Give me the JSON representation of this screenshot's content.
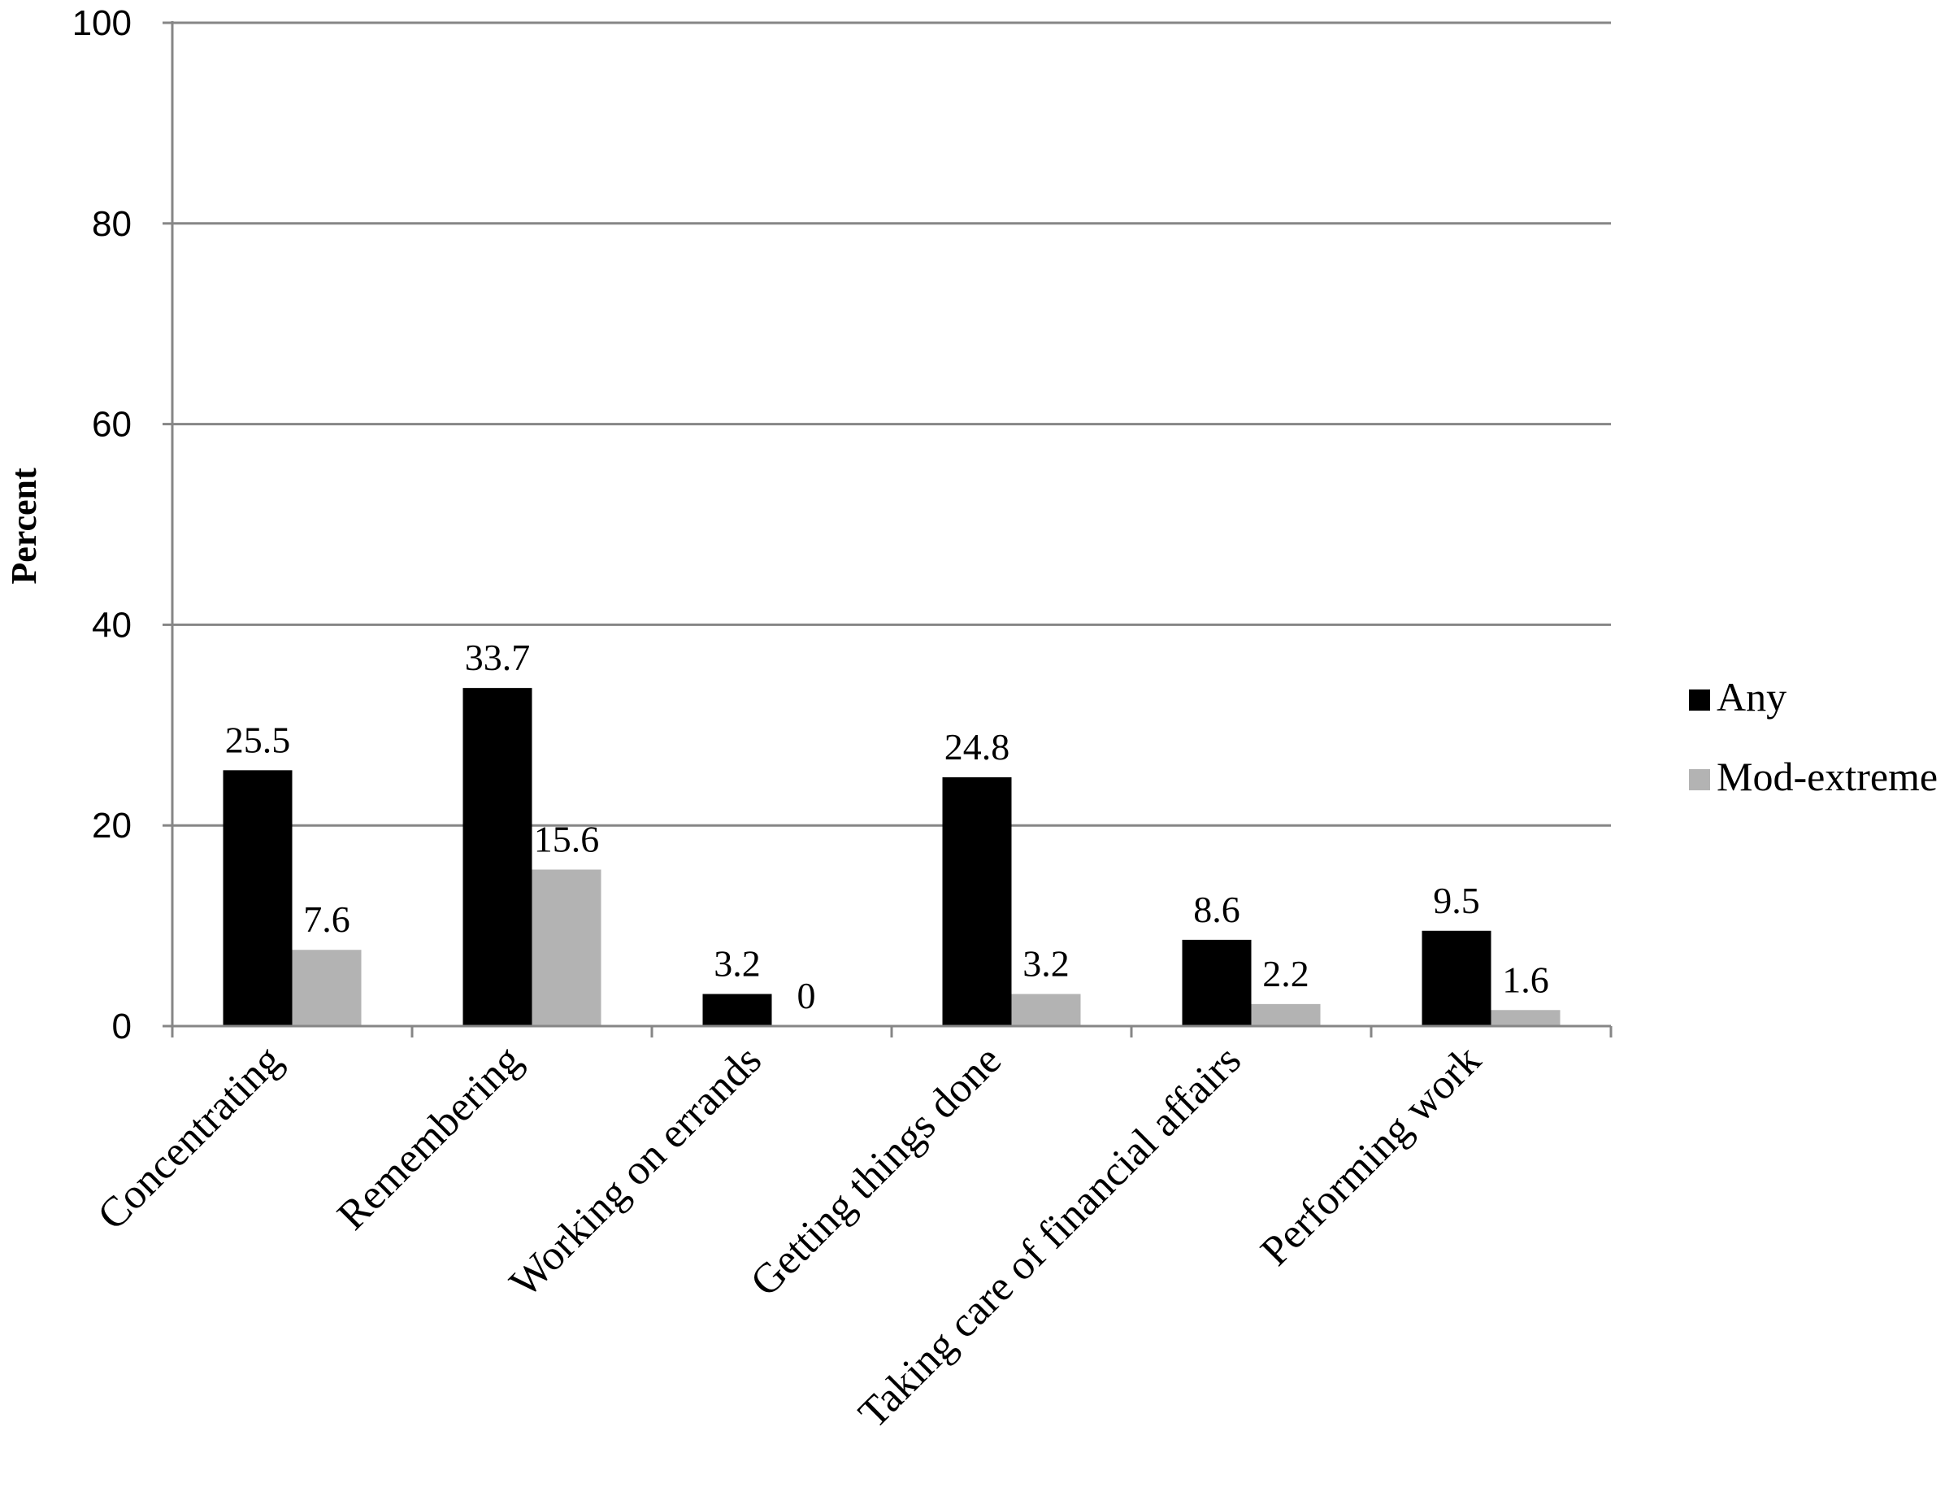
{
  "chart_data": {
    "type": "bar",
    "title": "",
    "xlabel": "",
    "ylabel": "Percent",
    "ylim": [
      0,
      100
    ],
    "yticks": [
      "0",
      "20",
      "40",
      "60",
      "80",
      "100"
    ],
    "grid": true,
    "legend_position": "right",
    "categories": [
      "Concentrating",
      "Remembering",
      "Working on errands",
      "Getting things done",
      "Taking care of financial affairs",
      "Performing work"
    ],
    "series": [
      {
        "name": "Any",
        "color": "#000000",
        "values": [
          25.5,
          33.7,
          3.2,
          24.8,
          8.6,
          9.5
        ],
        "labels": [
          "25.5",
          "33.7",
          "3.2",
          "24.8",
          "8.6",
          "9.5"
        ]
      },
      {
        "name": "Mod-extreme",
        "color": "#b3b3b3",
        "values": [
          7.6,
          15.6,
          0,
          3.2,
          2.2,
          1.6
        ],
        "labels": [
          "7.6",
          "15.6",
          "0",
          "3.2",
          "2.2",
          "1.6"
        ]
      }
    ]
  },
  "colors": {
    "gridline": "#868686",
    "axis": "#868686"
  }
}
